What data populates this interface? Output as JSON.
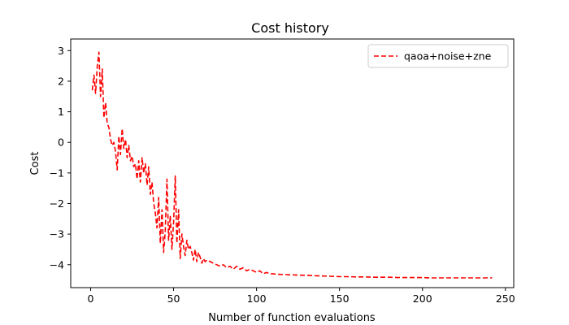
{
  "chart_data": {
    "type": "line",
    "title": "Cost history",
    "xlabel": "Number of function evaluations",
    "ylabel": "Cost",
    "xlim": [
      -12,
      255
    ],
    "ylim": [
      -4.75,
      3.38
    ],
    "x_ticks": [
      0,
      50,
      100,
      150,
      200,
      250
    ],
    "x_tick_labels": [
      "0",
      "50",
      "100",
      "150",
      "200",
      "250"
    ],
    "y_ticks": [
      3,
      2,
      1,
      0,
      -1,
      -2,
      -3,
      -4
    ],
    "y_tick_labels": [
      "3",
      "2",
      "1",
      "0",
      "−1",
      "−2",
      "−3",
      "−4"
    ],
    "grid": false,
    "legend": {
      "placement": "top-right"
    },
    "series": [
      {
        "name": "qaoa+noise+zne",
        "color": "#ff0000",
        "line_style": "dashed",
        "x": [
          1,
          2,
          3,
          4,
          5,
          6,
          7,
          8,
          9,
          10,
          11,
          12,
          13,
          14,
          15,
          16,
          17,
          18,
          19,
          20,
          21,
          22,
          23,
          24,
          25,
          26,
          27,
          28,
          29,
          30,
          31,
          32,
          33,
          34,
          35,
          36,
          37,
          38,
          39,
          40,
          41,
          42,
          43,
          44,
          45,
          46,
          47,
          48,
          49,
          50,
          51,
          52,
          53,
          54,
          55,
          56,
          57,
          58,
          59,
          60,
          61,
          62,
          63,
          64,
          65,
          66,
          67,
          68,
          69,
          70,
          72,
          74,
          76,
          78,
          80,
          82,
          84,
          86,
          88,
          90,
          92,
          94,
          96,
          98,
          100,
          102,
          104,
          106,
          108,
          110,
          115,
          120,
          125,
          130,
          135,
          140,
          145,
          150,
          155,
          160,
          165,
          170,
          175,
          180,
          185,
          190,
          195,
          200,
          205,
          210,
          215,
          220,
          225,
          230,
          235,
          242
        ],
        "y": [
          1.7,
          2.2,
          1.6,
          2.5,
          2.95,
          1.5,
          2.4,
          0.8,
          1.3,
          0.6,
          0.5,
          0.1,
          -0.1,
          0.0,
          -0.3,
          -0.9,
          0.2,
          -0.4,
          0.45,
          -0.2,
          0.1,
          -0.5,
          -0.1,
          -0.6,
          -0.45,
          -0.8,
          -0.7,
          -1.2,
          -0.6,
          -1.3,
          -0.5,
          -1.0,
          -0.7,
          -1.4,
          -0.8,
          -1.7,
          -1.3,
          -2.0,
          -2.3,
          -2.8,
          -1.8,
          -3.3,
          -2.2,
          -3.6,
          -2.9,
          -1.2,
          -3.2,
          -2.4,
          -3.5,
          -2.6,
          -1.1,
          -3.3,
          -2.2,
          -3.8,
          -3.0,
          -3.4,
          -3.7,
          -3.2,
          -3.5,
          -3.4,
          -3.6,
          -3.85,
          -3.5,
          -3.9,
          -3.6,
          -3.75,
          -3.95,
          -3.8,
          -3.9,
          -3.85,
          -3.9,
          -3.95,
          -4.0,
          -4.05,
          -4.0,
          -4.1,
          -4.05,
          -4.15,
          -4.05,
          -4.15,
          -4.1,
          -4.2,
          -4.15,
          -4.2,
          -4.25,
          -4.2,
          -4.3,
          -4.25,
          -4.3,
          -4.3,
          -4.32,
          -4.33,
          -4.34,
          -4.35,
          -4.36,
          -4.37,
          -4.38,
          -4.39,
          -4.39,
          -4.4,
          -4.4,
          -4.41,
          -4.41,
          -4.41,
          -4.42,
          -4.42,
          -4.42,
          -4.42,
          -4.43,
          -4.43,
          -4.43,
          -4.43,
          -4.43,
          -4.43,
          -4.43,
          -4.43
        ]
      }
    ]
  }
}
